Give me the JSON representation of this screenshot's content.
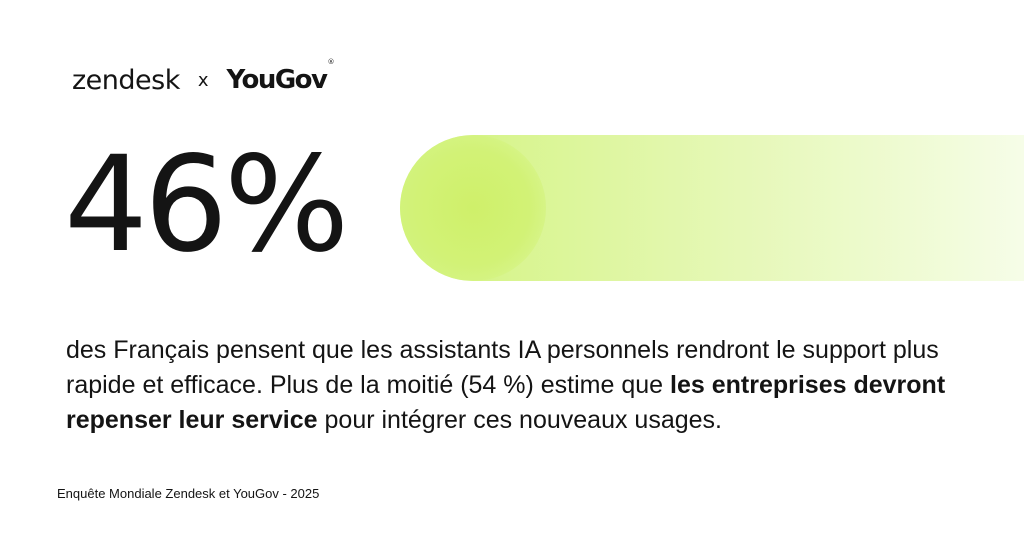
{
  "header": {
    "brand_left": "zendesk",
    "separator": "x",
    "brand_right": "YouGov",
    "brand_right_mark": "®"
  },
  "stat": {
    "value": "46%",
    "progress_fraction": 0.46,
    "bar_color": "#ccf26f"
  },
  "description": {
    "part1": "des Français pensent que les assistants IA personnels rendront le support plus rapide et efficace. Plus de la moitié (54 %) estime que ",
    "emphasis": "les entreprises devront repenser leur service",
    "part2": " pour intégrer ces nouveaux usages."
  },
  "footer": {
    "source": "Enquête Mondiale Zendesk et YouGov - 2025"
  }
}
